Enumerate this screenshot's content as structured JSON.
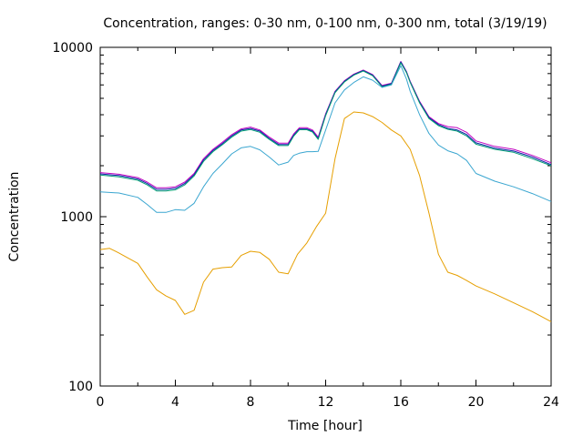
{
  "chart_data": {
    "type": "line",
    "title": "Concentration, ranges: 0-30 nm, 0-100 nm, 0-300 nm, total (3/19/19)",
    "xlabel": "Time [hour]",
    "ylabel": "Concentration",
    "xlim": [
      0,
      24
    ],
    "ylim": [
      100,
      10000
    ],
    "yscale": "log",
    "grid": false,
    "x_ticks": [
      0,
      4,
      8,
      12,
      16,
      20,
      24
    ],
    "x_tick_labels": [
      "0",
      "4",
      "8",
      "12",
      "16",
      "20",
      "24"
    ],
    "y_ticks": [
      100,
      1000,
      10000
    ],
    "y_tick_labels": [
      "100",
      "1000",
      "10000"
    ],
    "series": [
      {
        "color": "#c000c0",
        "x": [
          0,
          1,
          2,
          2.5,
          3,
          3.5,
          4,
          4.5,
          5,
          5.5,
          6,
          6.5,
          7,
          7.5,
          8,
          8.5,
          9,
          9.5,
          10,
          10.3,
          10.6,
          11,
          11.3,
          11.6,
          12,
          12.5,
          13,
          13.5,
          14,
          14.5,
          15,
          15.5,
          16,
          16.3,
          16.5,
          17,
          17.5,
          18,
          18.5,
          19,
          19.5,
          20,
          21,
          22,
          23,
          24
        ],
        "values": [
          1820,
          1780,
          1700,
          1600,
          1480,
          1480,
          1500,
          1600,
          1800,
          2200,
          2500,
          2750,
          3050,
          3300,
          3380,
          3250,
          2950,
          2720,
          2720,
          3080,
          3350,
          3350,
          3250,
          2950,
          4050,
          5500,
          6350,
          6950,
          7350,
          6900,
          5950,
          6150,
          8250,
          7200,
          6300,
          4800,
          3900,
          3550,
          3400,
          3350,
          3150,
          2800,
          2600,
          2500,
          2300,
          2080
        ]
      },
      {
        "color": "#0b1fa8",
        "x": [
          0,
          1,
          2,
          2.5,
          3,
          3.5,
          4,
          4.5,
          5,
          5.5,
          6,
          6.5,
          7,
          7.5,
          8,
          8.5,
          9,
          9.5,
          10,
          10.3,
          10.6,
          11,
          11.3,
          11.6,
          12,
          12.5,
          13,
          13.5,
          14,
          14.5,
          15,
          15.5,
          16,
          16.3,
          16.5,
          17,
          17.5,
          18,
          18.5,
          19,
          19.5,
          20,
          21,
          22,
          23,
          24
        ],
        "values": [
          1790,
          1750,
          1670,
          1570,
          1450,
          1450,
          1470,
          1570,
          1770,
          2160,
          2460,
          2700,
          3000,
          3250,
          3320,
          3200,
          2900,
          2670,
          2670,
          3030,
          3300,
          3300,
          3200,
          2900,
          4000,
          5450,
          6300,
          6900,
          7300,
          6850,
          5900,
          6100,
          8200,
          7150,
          6250,
          4750,
          3850,
          3500,
          3320,
          3250,
          3060,
          2730,
          2540,
          2440,
          2250,
          2030
        ]
      },
      {
        "color": "#009e73",
        "x": [
          0,
          1,
          2,
          2.5,
          3,
          3.5,
          4,
          4.5,
          5,
          5.5,
          6,
          6.5,
          7,
          7.5,
          8,
          8.5,
          9,
          9.5,
          10,
          10.3,
          10.6,
          11,
          11.3,
          11.6,
          12,
          12.5,
          13,
          13.5,
          14,
          14.5,
          15,
          15.5,
          16,
          16.3,
          16.5,
          17,
          17.5,
          18,
          18.5,
          19,
          19.5,
          20,
          21,
          22,
          23,
          24
        ],
        "values": [
          1760,
          1720,
          1640,
          1540,
          1420,
          1420,
          1440,
          1540,
          1740,
          2120,
          2420,
          2660,
          2950,
          3200,
          3270,
          3150,
          2860,
          2630,
          2630,
          2990,
          3260,
          3260,
          3160,
          2860,
          3950,
          5400,
          6250,
          6850,
          7250,
          6800,
          5850,
          6050,
          8100,
          7100,
          6200,
          4700,
          3800,
          3450,
          3280,
          3200,
          3000,
          2680,
          2500,
          2400,
          2200,
          2000
        ]
      },
      {
        "color": "#3aa6d0",
        "x": [
          0,
          1,
          2,
          2.5,
          3,
          3.5,
          4,
          4.5,
          5,
          5.5,
          6,
          6.5,
          7,
          7.5,
          8,
          8.5,
          9,
          9.5,
          10,
          10.3,
          10.6,
          11,
          11.3,
          11.6,
          12,
          12.5,
          13,
          13.5,
          14,
          14.5,
          15,
          15.5,
          16,
          16.3,
          16.5,
          17,
          17.5,
          18,
          18.5,
          19,
          19.5,
          20,
          21,
          22,
          23,
          24
        ],
        "values": [
          1400,
          1380,
          1300,
          1180,
          1060,
          1060,
          1100,
          1090,
          1200,
          1500,
          1800,
          2050,
          2350,
          2550,
          2600,
          2480,
          2250,
          2020,
          2100,
          2300,
          2370,
          2420,
          2420,
          2430,
          3250,
          4700,
          5600,
          6200,
          6700,
          6400,
          5800,
          6000,
          7800,
          6500,
          5500,
          4000,
          3100,
          2650,
          2450,
          2350,
          2150,
          1800,
          1620,
          1500,
          1370,
          1230
        ]
      },
      {
        "color": "#e69f00",
        "x": [
          0,
          0.5,
          1,
          2,
          2.5,
          3,
          3.5,
          4,
          4.5,
          5,
          5.5,
          6,
          6.5,
          7,
          7.5,
          8,
          8.5,
          9,
          9.5,
          10,
          10.5,
          11,
          11.5,
          12,
          12.5,
          13,
          13.5,
          14,
          14.5,
          15,
          15.5,
          16,
          16.5,
          17,
          17.5,
          18,
          18.5,
          19,
          19.5,
          20,
          21,
          22,
          23,
          24
        ],
        "values": [
          640,
          650,
          610,
          530,
          440,
          370,
          340,
          320,
          265,
          280,
          410,
          490,
          500,
          505,
          590,
          625,
          615,
          560,
          470,
          460,
          600,
          700,
          870,
          1050,
          2200,
          3800,
          4150,
          4100,
          3900,
          3600,
          3250,
          3000,
          2500,
          1750,
          1050,
          600,
          470,
          450,
          420,
          390,
          350,
          310,
          275,
          240
        ]
      }
    ]
  }
}
